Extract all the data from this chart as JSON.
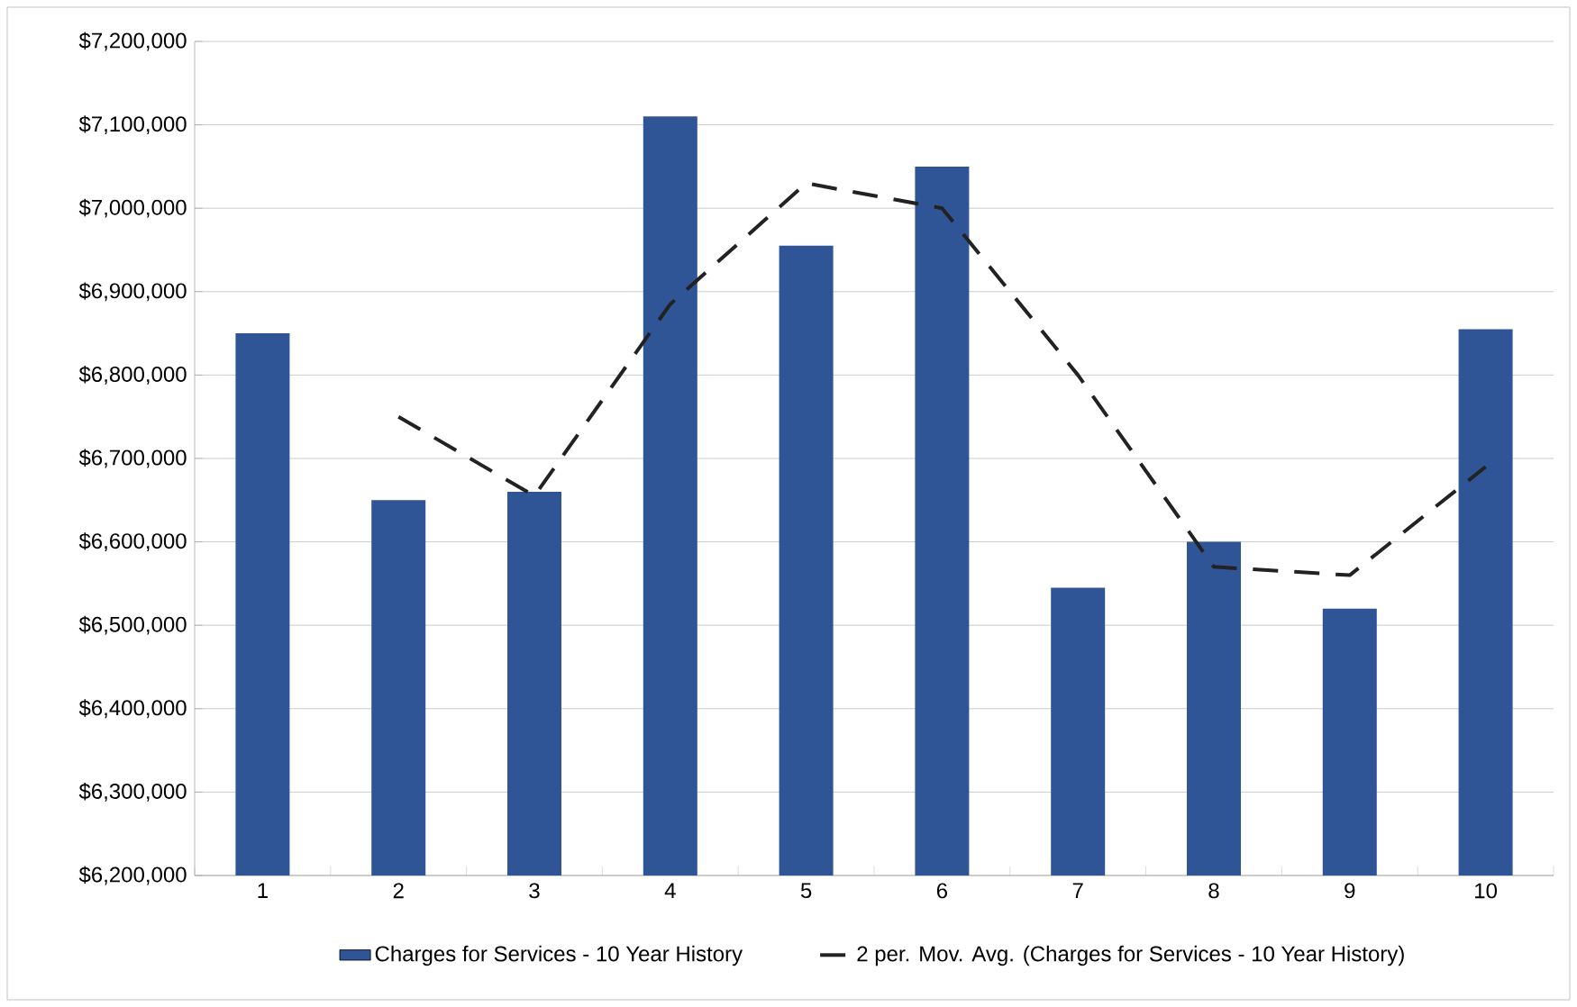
{
  "chart_data": {
    "type": "bar",
    "categories": [
      "1",
      "2",
      "3",
      "4",
      "5",
      "6",
      "7",
      "8",
      "9",
      "10"
    ],
    "series": [
      {
        "name": "Charges for Services - 10 Year History",
        "color": "#2f5597",
        "values": [
          6850000,
          6650000,
          6660000,
          7110000,
          6955000,
          7050000,
          6545000,
          6600000,
          6520000,
          6855000
        ]
      },
      {
        "name": "2 per. Mov. Avg. (Charges for Services - 10 Year History)",
        "type": "line",
        "color": "#222222",
        "line_style": "dashed",
        "values": [
          null,
          6750000,
          6655000,
          6885000,
          7030000,
          7000000,
          6800000,
          6570000,
          6560000,
          6690000
        ]
      }
    ],
    "ylim": [
      6200000,
      7200000
    ],
    "yticks": [
      {
        "value": 6200000,
        "label": "$6,200,000"
      },
      {
        "value": 6300000,
        "label": "$6,300,000"
      },
      {
        "value": 6400000,
        "label": "$6,400,000"
      },
      {
        "value": 6500000,
        "label": "$6,500,000"
      },
      {
        "value": 6600000,
        "label": "$6,600,000"
      },
      {
        "value": 6700000,
        "label": "$6,700,000"
      },
      {
        "value": 6800000,
        "label": "$6,800,000"
      },
      {
        "value": 6900000,
        "label": "$6,900,000"
      },
      {
        "value": 7000000,
        "label": "$7,000,000"
      },
      {
        "value": 7100000,
        "label": "$7,100,000"
      },
      {
        "value": 7200000,
        "label": "$7,200,000"
      }
    ],
    "grid": "y",
    "legend": "bottom"
  }
}
